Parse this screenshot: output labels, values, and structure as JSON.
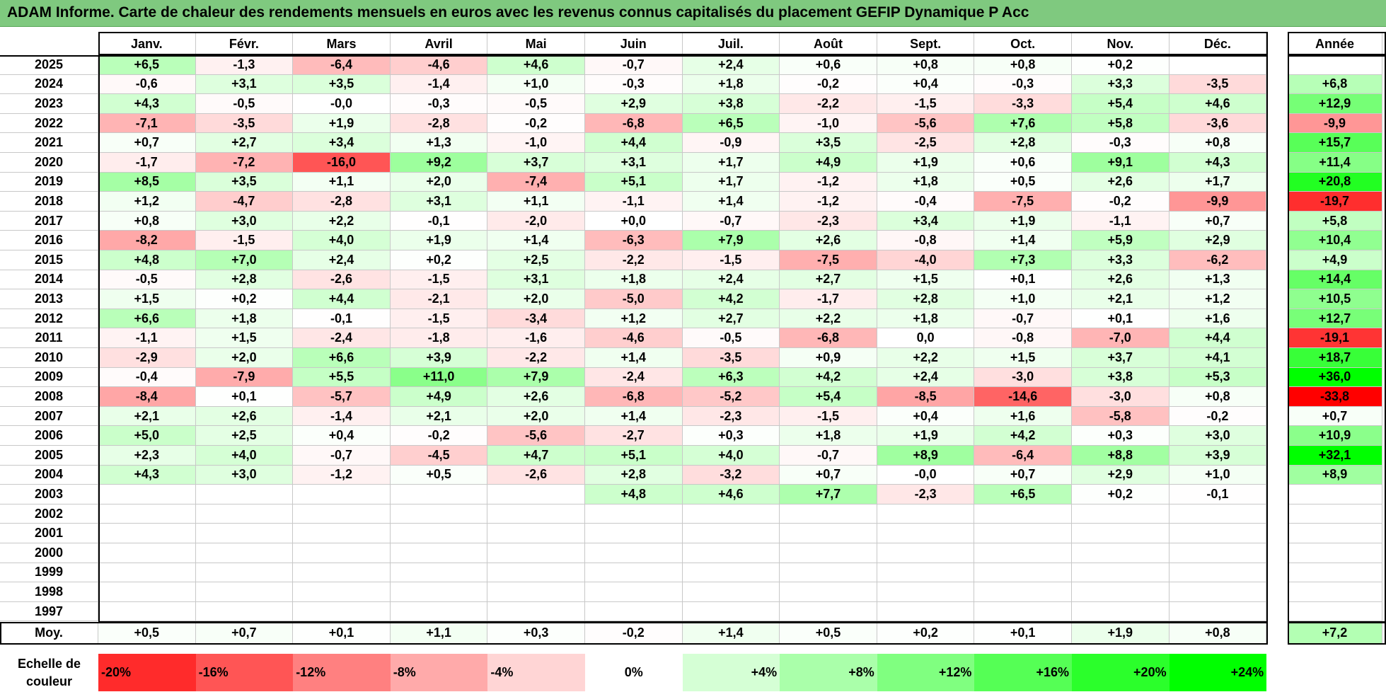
{
  "title": "ADAM Informe. Carte de chaleur des rendements mensuels en euros avec les revenus connus capitalisés du placement GEFIP Dynamique P Acc",
  "chart_data": {
    "type": "heatmap",
    "title": "ADAM Informe. Carte de chaleur des rendements mensuels en euros avec les revenus connus capitalisés du placement GEFIP Dynamique P Acc",
    "months": [
      "Janv.",
      "Févr.",
      "Mars",
      "Avril",
      "Mai",
      "Juin",
      "Juil.",
      "Août",
      "Sept.",
      "Oct.",
      "Nov.",
      "Déc."
    ],
    "annual_header": "Année",
    "rows": [
      {
        "year": "2025",
        "values": [
          "+6,5",
          "-1,3",
          "-6,4",
          "-4,6",
          "+4,6",
          "-0,7",
          "+2,4",
          "+0,6",
          "+0,8",
          "+0,8",
          "+0,2",
          ""
        ],
        "annual": ""
      },
      {
        "year": "2024",
        "values": [
          "-0,6",
          "+3,1",
          "+3,5",
          "-1,4",
          "+1,0",
          "-0,3",
          "+1,8",
          "-0,2",
          "+0,4",
          "-0,3",
          "+3,3",
          "-3,5"
        ],
        "annual": "+6,8"
      },
      {
        "year": "2023",
        "values": [
          "+4,3",
          "-0,5",
          "-0,0",
          "-0,3",
          "-0,5",
          "+2,9",
          "+3,8",
          "-2,2",
          "-1,5",
          "-3,3",
          "+5,4",
          "+4,6"
        ],
        "annual": "+12,9"
      },
      {
        "year": "2022",
        "values": [
          "-7,1",
          "-3,5",
          "+1,9",
          "-2,8",
          "-0,2",
          "-6,8",
          "+6,5",
          "-1,0",
          "-5,6",
          "+7,6",
          "+5,8",
          "-3,6"
        ],
        "annual": "-9,9"
      },
      {
        "year": "2021",
        "values": [
          "+0,7",
          "+2,7",
          "+3,4",
          "+1,3",
          "-1,0",
          "+4,4",
          "-0,9",
          "+3,5",
          "-2,5",
          "+2,8",
          "-0,3",
          "+0,8"
        ],
        "annual": "+15,7"
      },
      {
        "year": "2020",
        "values": [
          "-1,7",
          "-7,2",
          "-16,0",
          "+9,2",
          "+3,7",
          "+3,1",
          "+1,7",
          "+4,9",
          "+1,9",
          "+0,6",
          "+9,1",
          "+4,3"
        ],
        "annual": "+11,4"
      },
      {
        "year": "2019",
        "values": [
          "+8,5",
          "+3,5",
          "+1,1",
          "+2,0",
          "-7,4",
          "+5,1",
          "+1,7",
          "-1,2",
          "+1,8",
          "+0,5",
          "+2,6",
          "+1,7"
        ],
        "annual": "+20,8"
      },
      {
        "year": "2018",
        "values": [
          "+1,2",
          "-4,7",
          "-2,8",
          "+3,1",
          "+1,1",
          "-1,1",
          "+1,4",
          "-1,2",
          "-0,4",
          "-7,5",
          "-0,2",
          "-9,9"
        ],
        "annual": "-19,7"
      },
      {
        "year": "2017",
        "values": [
          "+0,8",
          "+3,0",
          "+2,2",
          "-0,1",
          "-2,0",
          "+0,0",
          "-0,7",
          "-2,3",
          "+3,4",
          "+1,9",
          "-1,1",
          "+0,7"
        ],
        "annual": "+5,8"
      },
      {
        "year": "2016",
        "values": [
          "-8,2",
          "-1,5",
          "+4,0",
          "+1,9",
          "+1,4",
          "-6,3",
          "+7,9",
          "+2,6",
          "-0,8",
          "+1,4",
          "+5,9",
          "+2,9"
        ],
        "annual": "+10,4"
      },
      {
        "year": "2015",
        "values": [
          "+4,8",
          "+7,0",
          "+2,4",
          "+0,2",
          "+2,5",
          "-2,2",
          "-1,5",
          "-7,5",
          "-4,0",
          "+7,3",
          "+3,3",
          "-6,2"
        ],
        "annual": "+4,9"
      },
      {
        "year": "2014",
        "values": [
          "-0,5",
          "+2,8",
          "-2,6",
          "-1,5",
          "+3,1",
          "+1,8",
          "+2,4",
          "+2,7",
          "+1,5",
          "+0,1",
          "+2,6",
          "+1,3"
        ],
        "annual": "+14,4"
      },
      {
        "year": "2013",
        "values": [
          "+1,5",
          "+0,2",
          "+4,4",
          "-2,1",
          "+2,0",
          "-5,0",
          "+4,2",
          "-1,7",
          "+2,8",
          "+1,0",
          "+2,1",
          "+1,2"
        ],
        "annual": "+10,5"
      },
      {
        "year": "2012",
        "values": [
          "+6,6",
          "+1,8",
          "-0,1",
          "-1,5",
          "-3,4",
          "+1,2",
          "+2,7",
          "+2,2",
          "+1,8",
          "-0,7",
          "+0,1",
          "+1,6"
        ],
        "annual": "+12,7"
      },
      {
        "year": "2011",
        "values": [
          "-1,1",
          "+1,5",
          "-2,4",
          "-1,8",
          "-1,6",
          "-4,6",
          "-0,5",
          "-6,8",
          "0,0",
          "-0,8",
          "-7,0",
          "+4,4"
        ],
        "annual": "-19,1"
      },
      {
        "year": "2010",
        "values": [
          "-2,9",
          "+2,0",
          "+6,6",
          "+3,9",
          "-2,2",
          "+1,4",
          "-3,5",
          "+0,9",
          "+2,2",
          "+1,5",
          "+3,7",
          "+4,1"
        ],
        "annual": "+18,7"
      },
      {
        "year": "2009",
        "values": [
          "-0,4",
          "-7,9",
          "+5,5",
          "+11,0",
          "+7,9",
          "-2,4",
          "+6,3",
          "+4,2",
          "+2,4",
          "-3,0",
          "+3,8",
          "+5,3"
        ],
        "annual": "+36,0"
      },
      {
        "year": "2008",
        "values": [
          "-8,4",
          "+0,1",
          "-5,7",
          "+4,9",
          "+2,6",
          "-6,8",
          "-5,2",
          "+5,4",
          "-8,5",
          "-14,6",
          "-3,0",
          "+0,8"
        ],
        "annual": "-33,8"
      },
      {
        "year": "2007",
        "values": [
          "+2,1",
          "+2,6",
          "-1,4",
          "+2,1",
          "+2,0",
          "+1,4",
          "-2,3",
          "-1,5",
          "+0,4",
          "+1,6",
          "-5,8",
          "-0,2"
        ],
        "annual": "+0,7"
      },
      {
        "year": "2006",
        "values": [
          "+5,0",
          "+2,5",
          "+0,4",
          "-0,2",
          "-5,6",
          "-2,7",
          "+0,3",
          "+1,8",
          "+1,9",
          "+4,2",
          "+0,3",
          "+3,0"
        ],
        "annual": "+10,9"
      },
      {
        "year": "2005",
        "values": [
          "+2,3",
          "+4,0",
          "-0,7",
          "-4,5",
          "+4,7",
          "+5,1",
          "+4,0",
          "-0,7",
          "+8,9",
          "-6,4",
          "+8,8",
          "+3,9"
        ],
        "annual": "+32,1"
      },
      {
        "year": "2004",
        "values": [
          "+4,3",
          "+3,0",
          "-1,2",
          "+0,5",
          "-2,6",
          "+2,8",
          "-3,2",
          "+0,7",
          "-0,0",
          "+0,7",
          "+2,9",
          "+1,0"
        ],
        "annual": "+8,9"
      },
      {
        "year": "2003",
        "values": [
          "",
          "",
          "",
          "",
          "",
          "+4,8",
          "+4,6",
          "+7,7",
          "-2,3",
          "+6,5",
          "+0,2",
          "-0,1"
        ],
        "annual": ""
      },
      {
        "year": "2002",
        "values": [
          "",
          "",
          "",
          "",
          "",
          "",
          "",
          "",
          "",
          "",
          "",
          ""
        ],
        "annual": ""
      },
      {
        "year": "2001",
        "values": [
          "",
          "",
          "",
          "",
          "",
          "",
          "",
          "",
          "",
          "",
          "",
          ""
        ],
        "annual": ""
      },
      {
        "year": "2000",
        "values": [
          "",
          "",
          "",
          "",
          "",
          "",
          "",
          "",
          "",
          "",
          "",
          ""
        ],
        "annual": ""
      },
      {
        "year": "1999",
        "values": [
          "",
          "",
          "",
          "",
          "",
          "",
          "",
          "",
          "",
          "",
          "",
          ""
        ],
        "annual": ""
      },
      {
        "year": "1998",
        "values": [
          "",
          "",
          "",
          "",
          "",
          "",
          "",
          "",
          "",
          "",
          "",
          ""
        ],
        "annual": ""
      },
      {
        "year": "1997",
        "values": [
          "",
          "",
          "",
          "",
          "",
          "",
          "",
          "",
          "",
          "",
          "",
          ""
        ],
        "annual": ""
      }
    ],
    "average": {
      "label": "Moy.",
      "values": [
        "+0,5",
        "+0,7",
        "+0,1",
        "+1,1",
        "+0,3",
        "-0,2",
        "+1,4",
        "+0,5",
        "+0,2",
        "+0,1",
        "+1,9",
        "+0,8"
      ],
      "annual": "+7,2"
    },
    "color_scale": {
      "label": "Echelle de couleur",
      "stops": [
        {
          "label": "-20%",
          "value": -20
        },
        {
          "label": "-16%",
          "value": -16
        },
        {
          "label": "-12%",
          "value": -12
        },
        {
          "label": "-8%",
          "value": -8
        },
        {
          "label": "-4%",
          "value": -4
        },
        {
          "label": "0%",
          "value": 0
        },
        {
          "label": "+4%",
          "value": 4
        },
        {
          "label": "+8%",
          "value": 8
        },
        {
          "label": "+12%",
          "value": 12
        },
        {
          "label": "+16%",
          "value": 16
        },
        {
          "label": "+20%",
          "value": 20
        },
        {
          "label": "+24%",
          "value": 24
        }
      ]
    },
    "colors": {
      "negative_max": "#ff0000",
      "zero": "#ffffff",
      "positive_max": "#00ff00"
    }
  }
}
